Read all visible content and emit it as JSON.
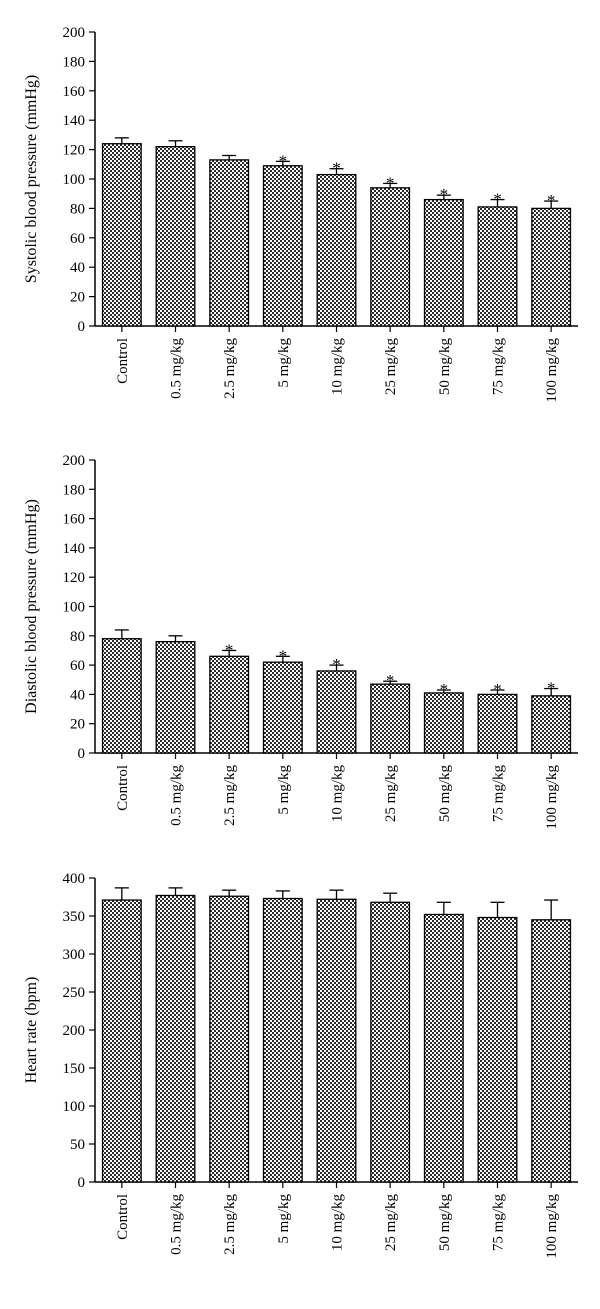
{
  "chart_data": [
    {
      "type": "bar",
      "title": "",
      "xlabel": "",
      "ylabel": "Systolic blood pressure (mmHg)",
      "ylim": [
        0,
        200
      ],
      "yticks": [
        0,
        20,
        40,
        60,
        80,
        100,
        120,
        140,
        160,
        180,
        200
      ],
      "categories": [
        "Control",
        "0.5 mg/kg",
        "2.5 mg/kg",
        "5 mg/kg",
        "10 mg/kg",
        "25 mg/kg",
        "50 mg/kg",
        "75 mg/kg",
        "100 mg/kg"
      ],
      "values": [
        124,
        122,
        113,
        109,
        103,
        94,
        86,
        81,
        80
      ],
      "errors": [
        4,
        4,
        3,
        3,
        4,
        3,
        3,
        5,
        5
      ],
      "significance": [
        "",
        "",
        "",
        "*",
        "*",
        "*",
        "*",
        "*",
        "*"
      ],
      "grid": false,
      "fill_pattern": "checkered"
    },
    {
      "type": "bar",
      "title": "",
      "xlabel": "",
      "ylabel": "Diastolic blood pressure (mmHg)",
      "ylim": [
        0,
        200
      ],
      "yticks": [
        0,
        20,
        40,
        60,
        80,
        100,
        120,
        140,
        160,
        180,
        200
      ],
      "categories": [
        "Control",
        "0.5 mg/kg",
        "2.5 mg/kg",
        "5 mg/kg",
        "10 mg/kg",
        "25 mg/kg",
        "50 mg/kg",
        "75 mg/kg",
        "100 mg/kg"
      ],
      "values": [
        78,
        76,
        66,
        62,
        56,
        47,
        41,
        40,
        39
      ],
      "errors": [
        6,
        4,
        4,
        4,
        4,
        2,
        2,
        3,
        5
      ],
      "significance": [
        "",
        "",
        "*",
        "*",
        "*",
        "*",
        "*",
        "*",
        "*"
      ],
      "grid": false,
      "fill_pattern": "checkered"
    },
    {
      "type": "bar",
      "title": "",
      "xlabel": "",
      "ylabel": "Heart rate (bpm)",
      "ylim": [
        0,
        400
      ],
      "yticks": [
        0,
        50,
        100,
        150,
        200,
        250,
        300,
        350,
        400
      ],
      "categories": [
        "Control",
        "0.5 mg/kg",
        "2.5 mg/kg",
        "5 mg/kg",
        "10 mg/kg",
        "25 mg/kg",
        "50 mg/kg",
        "75 mg/kg",
        "100 mg/kg"
      ],
      "values": [
        371,
        377,
        376,
        373,
        372,
        368,
        352,
        348,
        345
      ],
      "errors": [
        16,
        10,
        8,
        10,
        12,
        12,
        16,
        20,
        26
      ],
      "significance": [
        "",
        "",
        "",
        "",
        "",
        "",
        "",
        "",
        ""
      ],
      "grid": false,
      "fill_pattern": "checkered"
    }
  ]
}
